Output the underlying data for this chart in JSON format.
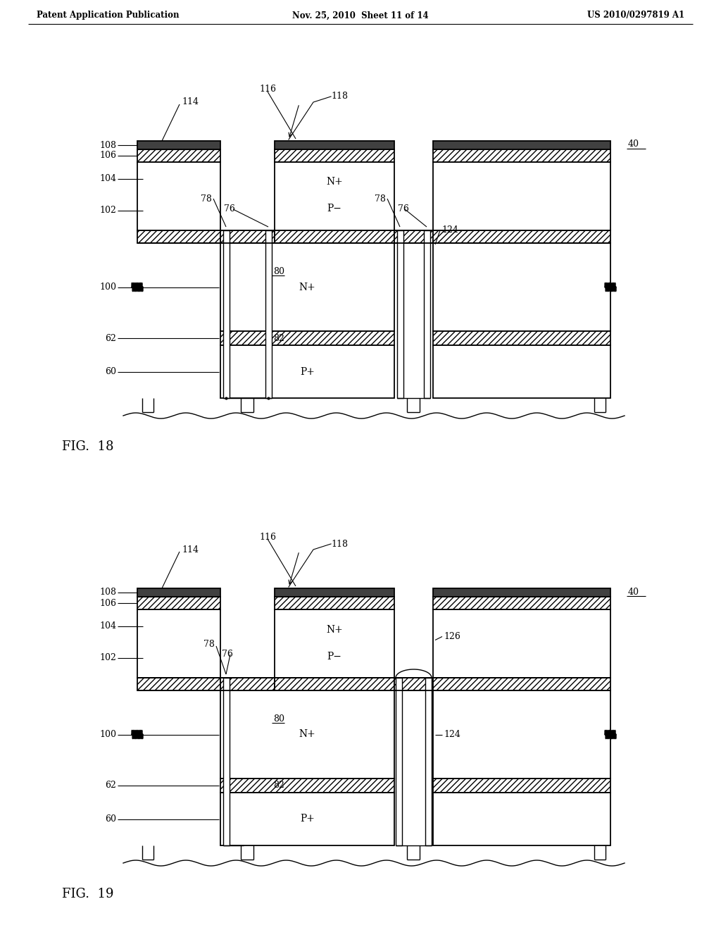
{
  "header_left": "Patent Application Publication",
  "header_mid": "Nov. 25, 2010  Sheet 11 of 14",
  "header_right": "US 2010/0297819 A1",
  "bg_color": "#ffffff",
  "line_color": "#000000"
}
